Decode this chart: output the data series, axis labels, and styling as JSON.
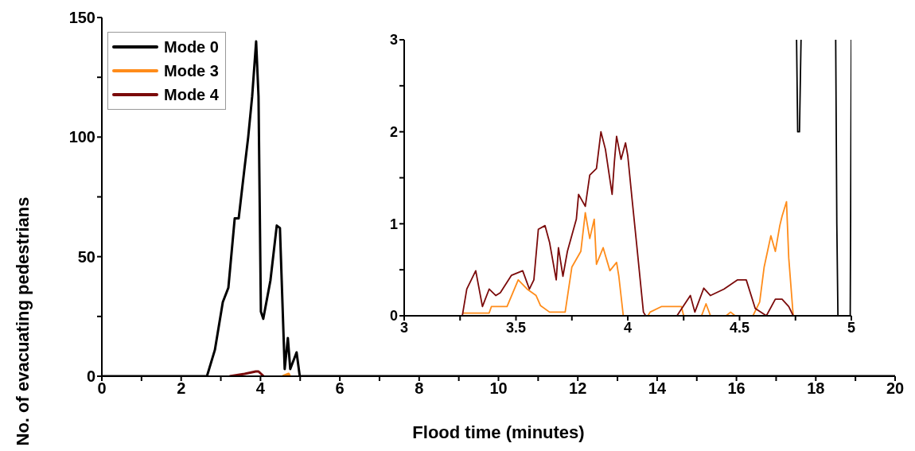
{
  "chart_data": [
    {
      "type": "line",
      "xlabel": "Flood time (minutes)",
      "ylabel": "No. of evacuating pedestrians",
      "xlim": [
        0,
        20
      ],
      "xticks": [
        0,
        {
          "value": 1,
          "label": null
        },
        2,
        {
          "value": 3,
          "label": null
        },
        4,
        {
          "value": 5,
          "label": null
        },
        6,
        {
          "value": 7,
          "label": null
        },
        8,
        {
          "value": 9,
          "label": null
        },
        10,
        {
          "value": 11,
          "label": null
        },
        12,
        {
          "value": 13,
          "label": null
        },
        14,
        {
          "value": 15,
          "label": null
        },
        16,
        {
          "value": 17,
          "label": null
        },
        18,
        {
          "value": 19,
          "label": null
        },
        20
      ],
      "ylim": [
        0,
        150
      ],
      "yticks": [
        0,
        {
          "value": 25,
          "label": null
        },
        50,
        {
          "value": 75,
          "label": null
        },
        100,
        {
          "value": 125,
          "label": null
        },
        150
      ],
      "grid": false,
      "legend": "top left",
      "line_style": "solid",
      "marker": "none",
      "series": [
        {
          "name": "Mode 0",
          "color": "#000000",
          "x": [
            0,
            2.65,
            2.85,
            3.05,
            3.19,
            3.35,
            3.45,
            3.59,
            3.69,
            3.79,
            3.89,
            3.95,
            4.01,
            4.07,
            4.25,
            4.41,
            4.49,
            4.61,
            4.69,
            4.75,
            4.91,
            4.99,
            20
          ],
          "values": [
            0,
            0,
            11,
            31,
            37,
            66,
            66,
            86,
            100,
            117,
            140,
            117,
            27,
            24,
            40,
            63,
            62,
            3,
            16,
            3,
            10,
            0,
            0
          ]
        },
        {
          "name": "Mode 3",
          "color": "#ff8c1a",
          "x": [
            4.56,
            4.71,
            4.74
          ],
          "values": [
            0,
            1,
            0
          ]
        },
        {
          "name": "Mode 4",
          "color": "#7b0a0a",
          "x": [
            3.22,
            3.6,
            3.88,
            3.95,
            4.08
          ],
          "values": [
            0,
            1,
            2,
            2,
            0
          ]
        }
      ]
    },
    {
      "type": "line",
      "xlim": [
        3,
        5
      ],
      "xticks": [
        3,
        {
          "value": 3.25,
          "label": null
        },
        3.5,
        {
          "value": 3.75,
          "label": null
        },
        4,
        {
          "value": 4.25,
          "label": null
        },
        4.5,
        {
          "value": 4.75,
          "label": null
        },
        5
      ],
      "ylim": [
        0,
        3
      ],
      "yticks": [
        0,
        {
          "value": 0.5,
          "label": null
        },
        1,
        {
          "value": 1.5,
          "label": null
        },
        2,
        {
          "value": 2.5,
          "label": null
        },
        3
      ],
      "grid": false,
      "line_style": "solid",
      "marker": "none",
      "series": [
        {
          "color": "#000000",
          "x": [
            4.755,
            4.76,
            4.768,
            4.775,
            4.85,
            4.93,
            4.935,
            4.94,
            4.995,
            5.0
          ],
          "values": [
            3,
            2,
            2,
            3,
            null,
            3,
            1,
            0,
            0,
            3
          ]
        },
        {
          "color": "#ff8c1a",
          "x": [
            3.26,
            3.38,
            3.39,
            3.46,
            3.51,
            3.55,
            3.59,
            3.61,
            3.65,
            3.72,
            3.75,
            3.79,
            3.81,
            3.83,
            3.85,
            3.86,
            3.89,
            3.92,
            3.95,
            3.96,
            3.98,
            4.09,
            4.1,
            4.15,
            4.24,
            4.25,
            4.33,
            4.35,
            4.37,
            4.44,
            4.46,
            4.48,
            4.56,
            4.59,
            4.61,
            4.64,
            4.66,
            4.68,
            4.69,
            4.71,
            4.72,
            4.74
          ],
          "values": [
            0.03,
            0.03,
            0.1,
            0.1,
            0.39,
            0.29,
            0.22,
            0.11,
            0.04,
            0.04,
            0.53,
            0.7,
            1.12,
            0.84,
            1.05,
            0.56,
            0.74,
            0.49,
            0.58,
            0.43,
            0,
            0,
            0.04,
            0.1,
            0.1,
            0,
            0,
            0.13,
            0,
            0,
            0.04,
            0,
            0,
            0.15,
            0.53,
            0.87,
            0.7,
            0.98,
            1.08,
            1.24,
            0.63,
            0
          ]
        },
        {
          "color": "#7b0a0a",
          "x": [
            3.26,
            3.28,
            3.32,
            3.35,
            3.38,
            3.41,
            3.43,
            3.48,
            3.53,
            3.56,
            3.58,
            3.6,
            3.63,
            3.65,
            3.68,
            3.69,
            3.71,
            3.73,
            3.77,
            3.78,
            3.81,
            3.83,
            3.86,
            3.88,
            3.9,
            3.93,
            3.94,
            3.95,
            3.97,
            3.99,
            4.0,
            4.02,
            4.04,
            4.07,
            4.08,
            4.22,
            4.28,
            4.3,
            4.34,
            4.37,
            4.43,
            4.49,
            4.53,
            4.57,
            4.62,
            4.66,
            4.69,
            4.72,
            4.74
          ],
          "values": [
            0,
            0.29,
            0.49,
            0.1,
            0.29,
            0.22,
            0.25,
            0.44,
            0.49,
            0.29,
            0.39,
            0.94,
            0.98,
            0.8,
            0.39,
            0.74,
            0.43,
            0.7,
            1.05,
            1.32,
            1.19,
            1.53,
            1.6,
            2.0,
            1.81,
            1.32,
            1.67,
            1.95,
            1.7,
            1.88,
            1.74,
            1.25,
            0.77,
            0.04,
            0,
            0,
            0.22,
            0.04,
            0.3,
            0.22,
            0.29,
            0.39,
            0.39,
            0.08,
            0,
            0.18,
            0.18,
            0.1,
            0
          ]
        }
      ]
    }
  ]
}
